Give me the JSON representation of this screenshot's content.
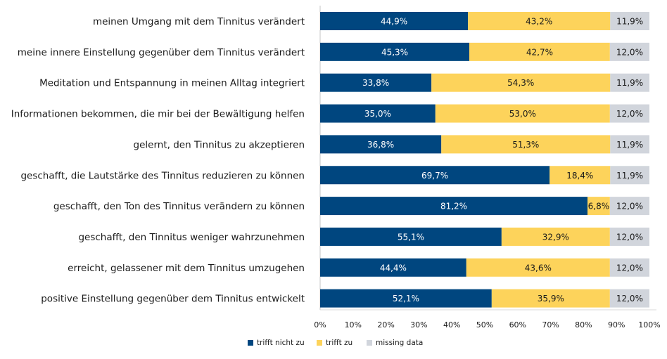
{
  "chart_data": {
    "type": "bar",
    "orientation": "horizontal",
    "stacked": true,
    "categories": [
      "meinen Umgang mit dem Tinnitus verändert",
      "meine innere Einstellung gegenüber dem Tinnitus verändert",
      "Meditation und Entspannung in meinen Alltag integriert",
      "Informationen bekommen, die mir bei der Bewältigung helfen",
      "gelernt, den Tinnitus zu akzeptieren",
      "geschafft, die Lautstärke des Tinnitus reduzieren zu können",
      "geschafft, den Ton des Tinnitus verändern zu können",
      "geschafft, den Tinnitus weniger wahrzunehmen",
      "erreicht, gelassener mit dem Tinnitus umzugehen",
      "positive Einstellung gegenüber dem Tinnitus entwickelt"
    ],
    "series": [
      {
        "name": "trifft nicht zu",
        "color": "#00467f",
        "label_color": "#ffffff",
        "values": [
          44.9,
          45.3,
          33.8,
          35.0,
          36.8,
          69.7,
          81.2,
          55.1,
          44.4,
          52.1
        ],
        "labels": [
          "44,9%",
          "45,3%",
          "33,8%",
          "35,0%",
          "36,8%",
          "69,7%",
          "81,2%",
          "55,1%",
          "44,4%",
          "52,1%"
        ]
      },
      {
        "name": "trifft zu",
        "color": "#fdd35b",
        "label_color": "#1a1a1a",
        "values": [
          43.2,
          42.7,
          54.3,
          53.0,
          51.3,
          18.4,
          6.8,
          32.9,
          43.6,
          35.9
        ],
        "labels": [
          "43,2%",
          "42,7%",
          "54,3%",
          "53,0%",
          "51,3%",
          "18,4%",
          "6,8%",
          "32,9%",
          "43,6%",
          "35,9%"
        ]
      },
      {
        "name": "missing data",
        "color": "#d1d5dc",
        "label_color": "#1a1a1a",
        "values": [
          11.9,
          12.0,
          11.9,
          12.0,
          11.9,
          11.9,
          12.0,
          12.0,
          12.0,
          12.0
        ],
        "labels": [
          "11,9%",
          "12,0%",
          "11,9%",
          "12,0%",
          "11,9%",
          "11,9%",
          "12,0%",
          "12,0%",
          "12,0%",
          "12,0%"
        ]
      }
    ],
    "xlim": [
      0,
      100
    ],
    "xticks": [
      "0%",
      "10%",
      "20%",
      "30%",
      "40%",
      "50%",
      "60%",
      "70%",
      "80%",
      "90%",
      "100%"
    ],
    "grid": false,
    "legend_position": "bottom-left"
  }
}
